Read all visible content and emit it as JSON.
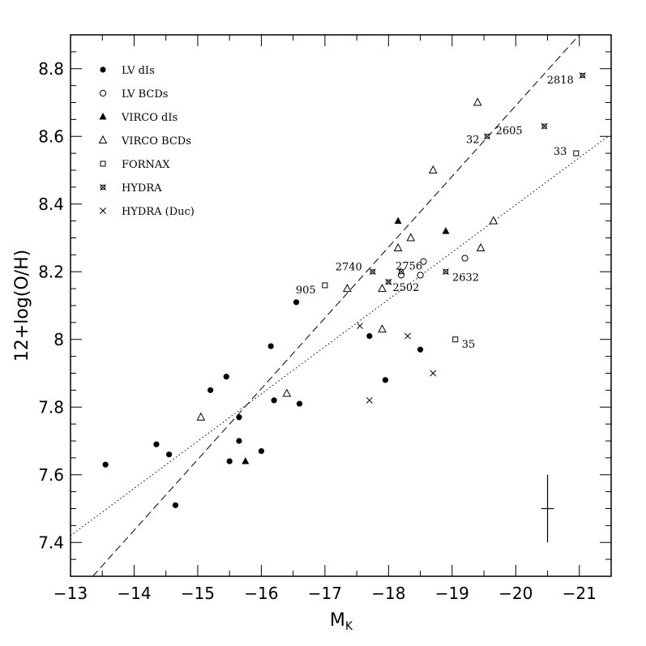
{
  "chart_data": {
    "type": "scatter",
    "xlabel_main": "M",
    "xlabel_sub": "K",
    "ylabel": "12+log(O/H)",
    "xlim": [
      -13,
      -21.5
    ],
    "ylim": [
      7.3,
      8.9
    ],
    "x_ticks": [
      -13,
      -14,
      -15,
      -16,
      -17,
      -18,
      -19,
      -20,
      -21
    ],
    "x_tick_labels": [
      "−13",
      "−14",
      "−15",
      "−16",
      "−17",
      "−18",
      "−19",
      "−20",
      "−21"
    ],
    "y_ticks": [
      7.4,
      7.6,
      7.8,
      8,
      8.2,
      8.4,
      8.6,
      8.8
    ],
    "y_tick_labels": [
      "7.4",
      "7.6",
      "7.8",
      "8",
      "8.2",
      "8.4",
      "8.6",
      "8.8"
    ],
    "grid": false,
    "legend_position": "top-left",
    "series": [
      {
        "name": "LV dIs",
        "marker": "filled-circle",
        "points": [
          [
            -13.55,
            7.63
          ],
          [
            -14.35,
            7.69
          ],
          [
            -14.55,
            7.66
          ],
          [
            -14.65,
            7.51
          ],
          [
            -15.2,
            7.85
          ],
          [
            -15.45,
            7.89
          ],
          [
            -15.5,
            7.64
          ],
          [
            -15.65,
            7.77
          ],
          [
            -15.65,
            7.7
          ],
          [
            -16.0,
            7.67
          ],
          [
            -16.15,
            7.98
          ],
          [
            -16.2,
            7.82
          ],
          [
            -16.55,
            8.11
          ],
          [
            -16.6,
            7.81
          ],
          [
            -17.7,
            8.01
          ],
          [
            -17.95,
            7.88
          ],
          [
            -18.5,
            7.97
          ]
        ]
      },
      {
        "name": "LV BCDs",
        "marker": "open-circle",
        "points": [
          [
            -18.2,
            8.19
          ],
          [
            -18.5,
            8.19
          ],
          [
            -18.55,
            8.23
          ],
          [
            -19.2,
            8.24
          ]
        ]
      },
      {
        "name": "VIRCO dIs",
        "marker": "filled-triangle",
        "points": [
          [
            -15.75,
            7.64
          ],
          [
            -18.15,
            8.35
          ],
          [
            -18.9,
            8.32
          ]
        ]
      },
      {
        "name": "VIRCO BCDs",
        "marker": "open-triangle",
        "points": [
          [
            -15.05,
            7.77
          ],
          [
            -16.4,
            7.84
          ],
          [
            -17.35,
            8.15
          ],
          [
            -17.9,
            8.15
          ],
          [
            -17.9,
            8.03
          ],
          [
            -18.15,
            8.27
          ],
          [
            -18.35,
            8.3
          ],
          [
            -18.7,
            8.5
          ],
          [
            -19.4,
            8.7
          ],
          [
            -19.45,
            8.27
          ],
          [
            -19.65,
            8.35
          ]
        ]
      },
      {
        "name": "FORNAX",
        "marker": "open-square",
        "points": [
          [
            -17.0,
            8.16
          ],
          [
            -19.05,
            8.0
          ],
          [
            -20.95,
            8.55
          ]
        ],
        "labels": [
          "905",
          "35",
          "33"
        ]
      },
      {
        "name": "HYDRA",
        "marker": "hydra-star",
        "points": [
          [
            -17.75,
            8.2
          ],
          [
            -18.0,
            8.17
          ],
          [
            -18.2,
            8.2
          ],
          [
            -18.9,
            8.2
          ],
          [
            -19.55,
            8.6
          ],
          [
            -20.45,
            8.63
          ],
          [
            -21.05,
            8.78
          ]
        ],
        "labels": [
          "2740",
          "2502",
          "2756",
          "2632",
          "32",
          "2605",
          "2818"
        ]
      },
      {
        "name": "HYDRA (Duc)",
        "marker": "cross",
        "points": [
          [
            -17.55,
            8.04
          ],
          [
            -17.7,
            7.82
          ],
          [
            -18.3,
            8.01
          ],
          [
            -18.7,
            7.9
          ]
        ]
      }
    ],
    "fit_lines": [
      {
        "style": "dashed",
        "points": [
          [
            -13.35,
            7.3
          ],
          [
            -21.0,
            8.9
          ]
        ]
      },
      {
        "style": "dotted",
        "points": [
          [
            -13.0,
            7.42
          ],
          [
            -21.45,
            8.6
          ]
        ]
      }
    ],
    "error_bar": {
      "x": -20.5,
      "y": 7.5,
      "x_err": 0.1,
      "y_err": 0.1
    }
  }
}
